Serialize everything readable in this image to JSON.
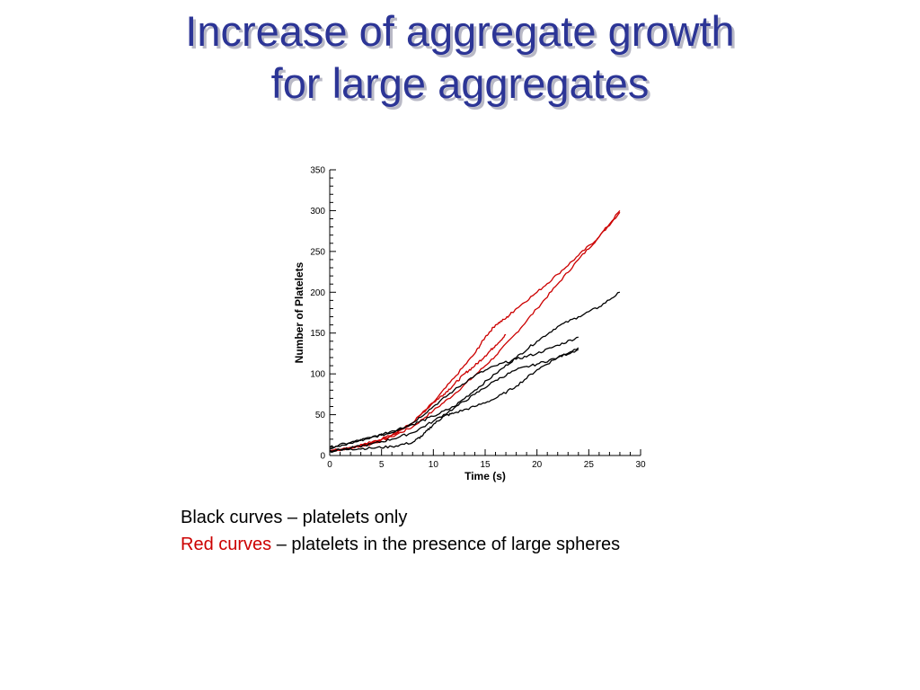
{
  "title": {
    "line1": "Increase of aggregate growth",
    "line2": "for large aggregates"
  },
  "caption": {
    "black_line": "Black curves – platelets only",
    "red_label": "Red curves",
    "red_rest": " – platelets in the presence of large spheres"
  },
  "colors": {
    "title": "#2c3596",
    "red_series": "#cc0000",
    "black_series": "#000000"
  },
  "chart_data": {
    "type": "line",
    "title": "",
    "xlabel": "Time (s)",
    "ylabel": "Number of Platelets",
    "xlim": [
      0,
      30
    ],
    "ylim": [
      0,
      350
    ],
    "xticks": [
      0,
      5,
      10,
      15,
      20,
      25,
      30
    ],
    "yticks": [
      0,
      50,
      100,
      150,
      200,
      250,
      300,
      350
    ],
    "grid": false,
    "legend": "none",
    "series": [
      {
        "color": "#cc0000",
        "x": [
          0,
          2,
          4,
          6,
          8,
          10,
          12,
          14,
          16,
          18,
          20,
          22,
          24,
          26,
          28
        ],
        "y": [
          6,
          9,
          14,
          23,
          35,
          55,
          75,
          98,
          122,
          150,
          180,
          210,
          240,
          268,
          298
        ]
      },
      {
        "color": "#cc0000",
        "x": [
          0,
          2,
          4,
          6,
          8,
          10,
          12,
          14,
          15,
          16,
          17,
          18,
          20,
          22,
          24,
          26,
          28
        ],
        "y": [
          6,
          10,
          16,
          25,
          40,
          65,
          95,
          125,
          145,
          160,
          168,
          180,
          200,
          222,
          245,
          268,
          300
        ]
      },
      {
        "color": "#cc0000",
        "x": [
          0,
          2,
          4,
          6,
          8,
          10,
          11,
          12,
          13,
          14,
          15,
          16,
          17
        ],
        "y": [
          5,
          9,
          15,
          25,
          40,
          65,
          75,
          87,
          100,
          110,
          122,
          135,
          148
        ]
      },
      {
        "color": "#000000",
        "x": [
          0,
          2,
          4,
          6,
          8,
          10,
          12,
          14,
          16,
          18,
          20,
          22,
          24,
          26,
          28
        ],
        "y": [
          8,
          15,
          22,
          30,
          38,
          48,
          60,
          80,
          100,
          120,
          140,
          158,
          170,
          182,
          200
        ]
      },
      {
        "color": "#000000",
        "x": [
          0,
          2,
          4,
          6,
          8,
          10,
          12,
          14,
          16,
          18,
          20,
          22,
          24
        ],
        "y": [
          10,
          16,
          22,
          28,
          40,
          60,
          80,
          98,
          110,
          118,
          125,
          135,
          145
        ]
      },
      {
        "color": "#000000",
        "x": [
          0,
          2,
          4,
          6,
          8,
          9,
          10,
          11,
          12,
          14,
          16,
          18,
          20,
          22,
          24
        ],
        "y": [
          6,
          8,
          9,
          11,
          16,
          25,
          38,
          48,
          52,
          60,
          70,
          85,
          105,
          120,
          132
        ]
      },
      {
        "color": "#000000",
        "x": [
          0,
          2,
          4,
          6,
          8,
          10,
          12,
          14,
          16,
          18,
          20,
          22,
          24
        ],
        "y": [
          5,
          9,
          14,
          20,
          28,
          42,
          58,
          75,
          92,
          105,
          112,
          120,
          130
        ]
      }
    ]
  }
}
